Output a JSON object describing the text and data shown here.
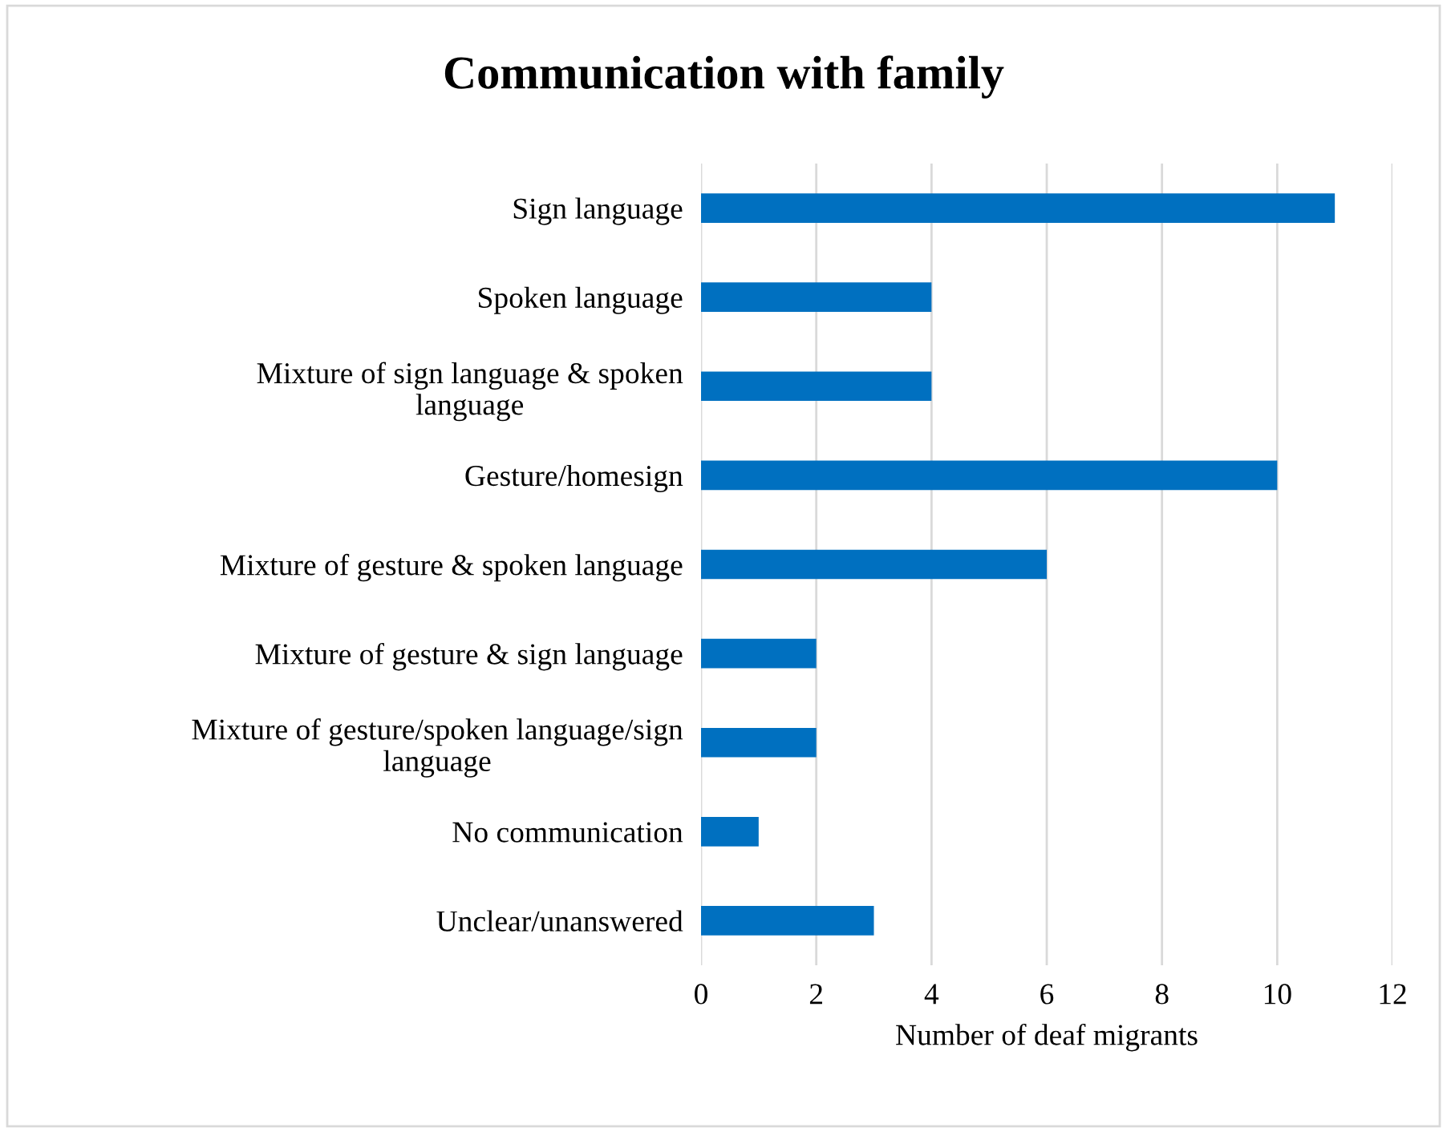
{
  "chart_data": {
    "type": "bar",
    "orientation": "horizontal",
    "title": "Communication with family",
    "xlabel": "Number of deaf migrants",
    "categories": [
      "Sign language",
      "Spoken language",
      "Mixture of sign language & spoken\nlanguage",
      "Gesture/homesign",
      "Mixture of gesture & spoken language",
      "Mixture of gesture & sign language",
      "Mixture of gesture/spoken language/sign\nlanguage",
      "No communication",
      "Unclear/unanswered"
    ],
    "values": [
      11,
      4,
      4,
      10,
      6,
      2,
      2,
      1,
      3
    ],
    "color": "#0070c0",
    "xlim": [
      0,
      12
    ],
    "xticks": [
      0,
      2,
      4,
      6,
      8,
      10,
      12
    ],
    "grid": "x",
    "legend": false
  }
}
